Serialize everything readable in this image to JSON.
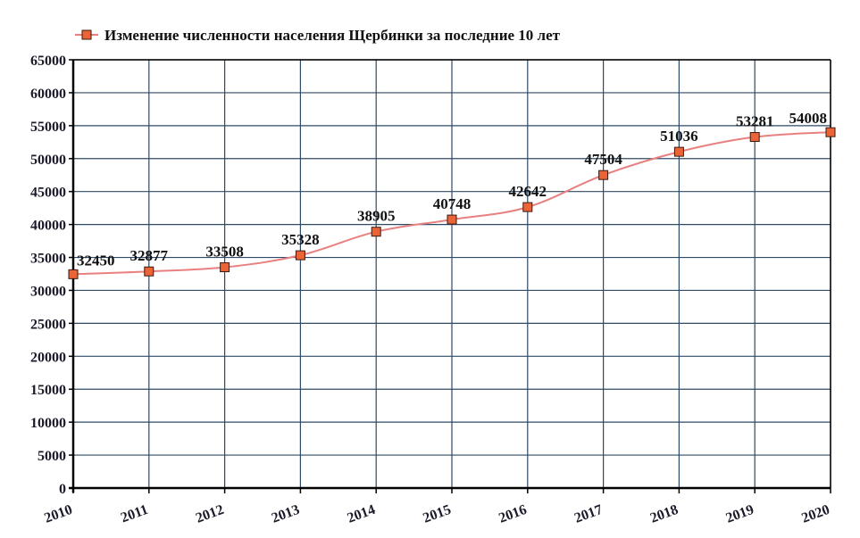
{
  "chart_data": {
    "type": "line",
    "title": "",
    "legend": {
      "position": "top",
      "entries": [
        "Изменение численности населения Щербинки за последние 10 лет"
      ]
    },
    "categories": [
      "2010",
      "2011",
      "2012",
      "2013",
      "2014",
      "2015",
      "2016",
      "2017",
      "2018",
      "2019",
      "2020"
    ],
    "series": [
      {
        "name": "Изменение численности населения Щербинки за последние 10 лет",
        "values": [
          32450,
          32877,
          33508,
          35328,
          38905,
          40748,
          42642,
          47504,
          51036,
          53281,
          54008
        ],
        "data_labels": [
          "32450",
          "32877",
          "33508",
          "35328",
          "38905",
          "40748",
          "42642",
          "47504",
          "51036",
          "53281",
          "54008"
        ]
      }
    ],
    "xlabel": "",
    "ylabel": "",
    "ylim": [
      0,
      65000
    ],
    "yticks": [
      0,
      5000,
      10000,
      15000,
      20000,
      25000,
      30000,
      35000,
      40000,
      45000,
      50000,
      55000,
      60000,
      65000
    ],
    "ytick_labels": [
      "0",
      "5000",
      "10000",
      "15000",
      "20000",
      "25000",
      "30000",
      "35000",
      "40000",
      "45000",
      "50000",
      "55000",
      "60000",
      "65000"
    ],
    "grid": true,
    "x_tick_rotation": -20,
    "smooth_line": true
  },
  "colors": {
    "line": "#e88080",
    "marker_fill": "#ea6437",
    "marker_border": "#3a1a10",
    "grid": "#2f4a66",
    "axis": "#000000",
    "text": "#111111"
  }
}
